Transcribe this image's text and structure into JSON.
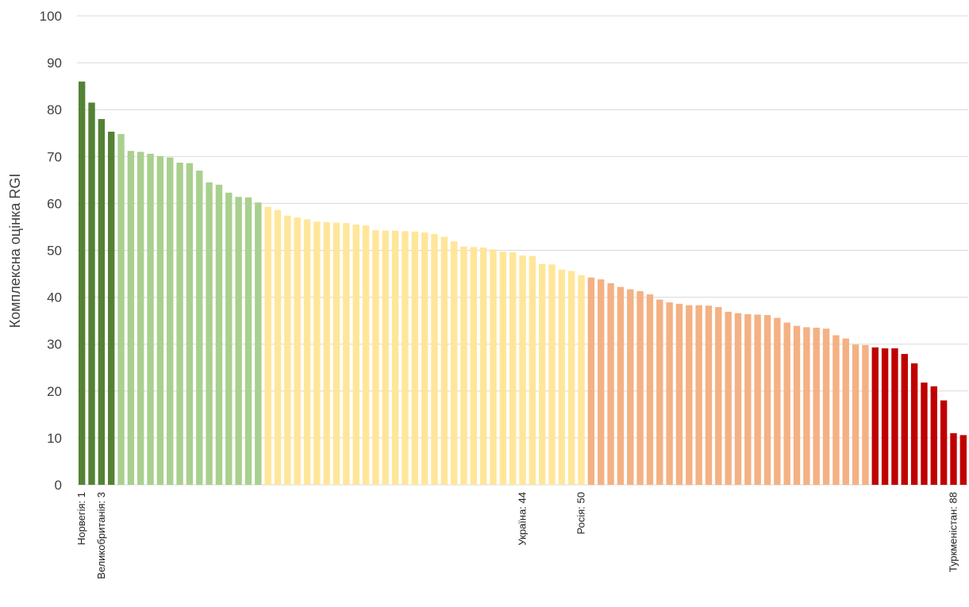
{
  "chart_data": {
    "type": "bar",
    "ylabel": "Комплексна оцінка RGI",
    "ylim": [
      0,
      100
    ],
    "yticks": [
      0,
      10,
      20,
      30,
      40,
      50,
      60,
      70,
      80,
      90,
      100
    ],
    "grid": true,
    "legend": "none",
    "tier_colors": [
      "#548235",
      "#a9d08e",
      "#ffe699",
      "#f4b183",
      "#c00000"
    ],
    "values": [
      86,
      81.5,
      78,
      75.3,
      74.8,
      71.2,
      71,
      70.6,
      70.1,
      69.8,
      68.7,
      68.6,
      67,
      64.5,
      64,
      62.3,
      61.4,
      61.3,
      60.2,
      59.3,
      58.6,
      57.4,
      57,
      56.6,
      56.1,
      56,
      55.9,
      55.8,
      55.5,
      55.3,
      54.3,
      54.2,
      54.2,
      54.1,
      54,
      53.8,
      53.5,
      52.9,
      51.9,
      50.8,
      50.7,
      50.6,
      50.2,
      49.7,
      49.6,
      48.9,
      48.8,
      47.1,
      47,
      45.9,
      45.6,
      44.7,
      44.2,
      43.8,
      43,
      42.2,
      41.7,
      41.3,
      40.6,
      39.5,
      38.9,
      38.6,
      38.3,
      38.3,
      38.2,
      37.9,
      36.9,
      36.6,
      36.4,
      36.3,
      36.2,
      35.6,
      34.6,
      33.9,
      33.6,
      33.5,
      33.3,
      31.9,
      31.2,
      29.9,
      29.8,
      29.3,
      29.1,
      29.1,
      27.9,
      25.9,
      21.8,
      21,
      18,
      11,
      10.6
    ],
    "tiers": [
      0,
      0,
      0,
      0,
      1,
      1,
      1,
      1,
      1,
      1,
      1,
      1,
      1,
      1,
      1,
      1,
      1,
      1,
      1,
      2,
      2,
      2,
      2,
      2,
      2,
      2,
      2,
      2,
      2,
      2,
      2,
      2,
      2,
      2,
      2,
      2,
      2,
      2,
      2,
      2,
      2,
      2,
      2,
      2,
      2,
      2,
      2,
      2,
      2,
      2,
      2,
      2,
      3,
      3,
      3,
      3,
      3,
      3,
      3,
      3,
      3,
      3,
      3,
      3,
      3,
      3,
      3,
      3,
      3,
      3,
      3,
      3,
      3,
      3,
      3,
      3,
      3,
      3,
      3,
      3,
      3,
      4,
      4,
      4,
      4,
      4,
      4,
      4,
      4,
      4,
      4
    ],
    "category_labels": [
      {
        "index": 0,
        "label": "Норвегія: 1"
      },
      {
        "index": 2,
        "label": "Великобританія: 3"
      },
      {
        "index": 45,
        "label": "Україна: 44"
      },
      {
        "index": 51,
        "label": "Росія: 50"
      },
      {
        "index": 89,
        "label": "Туркменістан: 88"
      }
    ]
  }
}
